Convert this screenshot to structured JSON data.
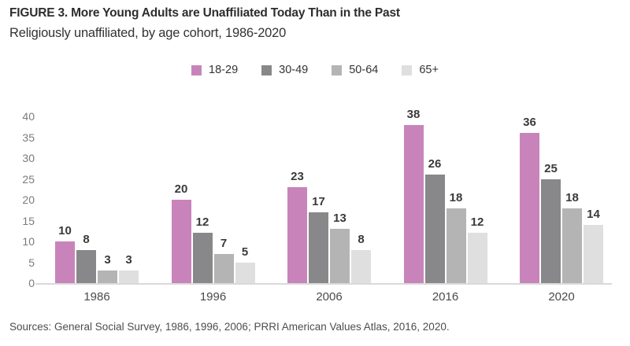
{
  "header": {
    "title": "FIGURE 3. More Young Adults are Unaffiliated Today Than in the Past",
    "subtitle": "Religiously unaffiliated, by age cohort, 1986-2020"
  },
  "footer": {
    "sources": "Sources: General Social Survey, 1986, 1996, 2006; PRRI American Values Atlas, 2016, 2020."
  },
  "colors": {
    "accent_pink": "#c884ba",
    "dark_gray": "#88888a",
    "medium_gray": "#b5b4b5",
    "light_gray": "#dfdfdf",
    "axis_line": "#d9d9d9"
  },
  "chart_data": {
    "type": "bar",
    "title": "FIGURE 3. More Young Adults are Unaffiliated Today Than in the Past",
    "subtitle": "Religiously unaffiliated, by age cohort, 1986-2020",
    "categories": [
      "1986",
      "1996",
      "2006",
      "2016",
      "2020"
    ],
    "series": [
      {
        "name": "18-29",
        "color": "#c884ba",
        "values": [
          10,
          20,
          23,
          38,
          36
        ]
      },
      {
        "name": "30-49",
        "color": "#88888a",
        "values": [
          8,
          12,
          17,
          26,
          25
        ]
      },
      {
        "name": "50-64",
        "color": "#b5b4b5",
        "values": [
          3,
          7,
          13,
          18,
          18
        ]
      },
      {
        "name": "65+",
        "color": "#dfdfdf",
        "values": [
          3,
          5,
          8,
          12,
          14
        ]
      }
    ],
    "xlabel": "",
    "ylabel": "",
    "ylim": [
      0,
      40
    ],
    "yticks": [
      0,
      5,
      10,
      15,
      20,
      25,
      30,
      35,
      40
    ],
    "grid": false,
    "legend_position": "top-center",
    "value_labels": true
  }
}
